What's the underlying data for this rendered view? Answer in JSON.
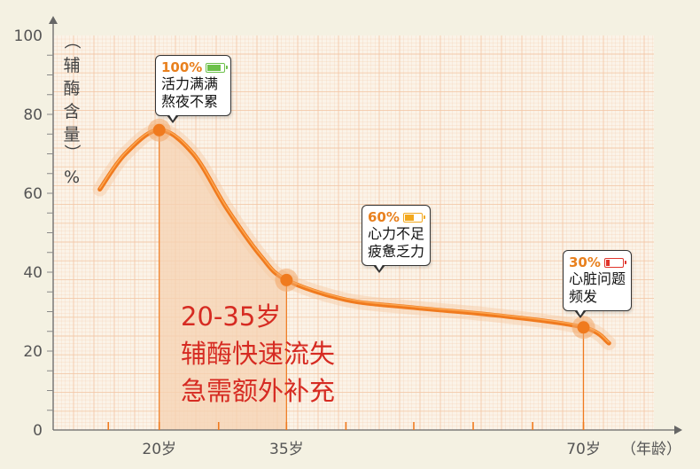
{
  "chart_data": {
    "type": "line",
    "ylabel": "（辅酶含量）%",
    "xlabel": "（年龄）",
    "ylim": [
      0,
      100
    ],
    "yticks": [
      0,
      20,
      40,
      60,
      80,
      100
    ],
    "xtick_labels": [
      {
        "x": 20,
        "label": "20岁"
      },
      {
        "x": 35,
        "label": "35岁"
      },
      {
        "x": 70,
        "label": "70岁"
      }
    ],
    "grid": true,
    "series": [
      {
        "points": [
          {
            "x": 13,
            "y": 61
          },
          {
            "x": 16,
            "y": 70
          },
          {
            "x": 20,
            "y": 76
          },
          {
            "x": 24,
            "y": 70
          },
          {
            "x": 28,
            "y": 56
          },
          {
            "x": 32,
            "y": 44
          },
          {
            "x": 35,
            "y": 38
          },
          {
            "x": 42,
            "y": 33
          },
          {
            "x": 50,
            "y": 31
          },
          {
            "x": 60,
            "y": 29
          },
          {
            "x": 70,
            "y": 26
          },
          {
            "x": 73,
            "y": 22
          }
        ]
      }
    ],
    "highlighted_points": [
      {
        "x": 20,
        "y": 76
      },
      {
        "x": 35,
        "y": 38
      },
      {
        "x": 70,
        "y": 26
      }
    ],
    "shaded_range": [
      20,
      35
    ],
    "annotation": [
      "20-35岁",
      "辅酶快速流失",
      "急需额外补充"
    ],
    "callouts": [
      {
        "percent": "100%",
        "battery": "full",
        "lines": [
          "活力满满",
          "熬夜不累"
        ]
      },
      {
        "percent": "60%",
        "battery": "medium",
        "lines": [
          "心力不足",
          "疲惫乏力"
        ]
      },
      {
        "percent": "30%",
        "battery": "low",
        "lines": [
          "心脏问题",
          "频发"
        ]
      }
    ],
    "colors": {
      "curve": "#f07a1e",
      "highlight_area": "#f6d2b2",
      "annotation_text": "#d62b22",
      "battery_full": "#6cc04a",
      "battery_medium": "#f2a81d",
      "battery_low": "#e0342b",
      "grid": "#f3c6a4"
    }
  }
}
